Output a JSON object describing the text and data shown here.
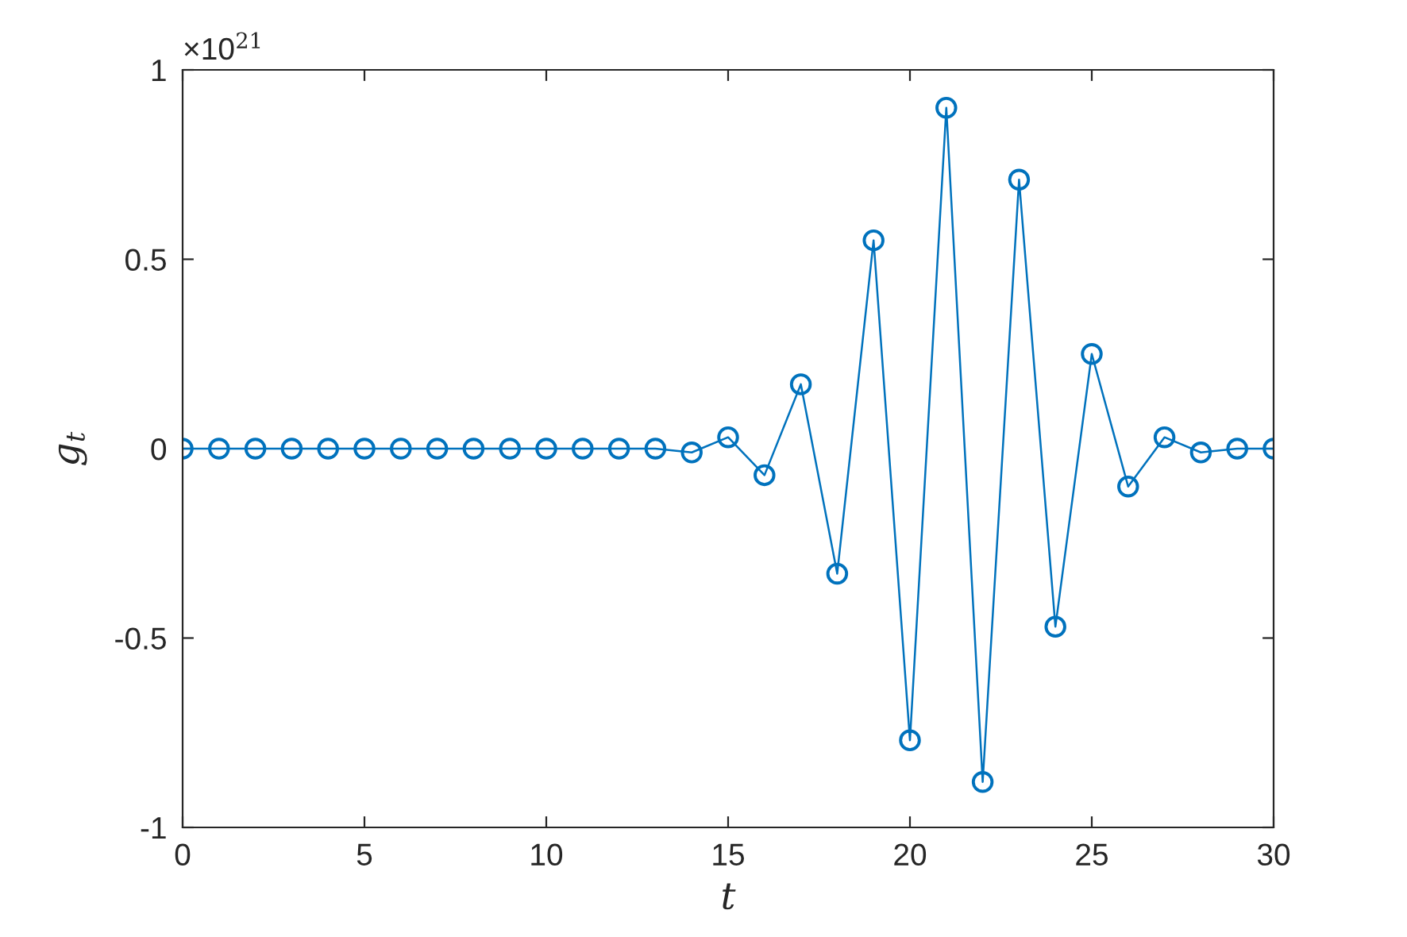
{
  "chart_data": {
    "type": "line",
    "xlabel": "t",
    "ylabel": "g$_{t}$",
    "annotations": [
      "×10$^{21}$"
    ],
    "x": [
      0,
      1,
      2,
      3,
      4,
      5,
      6,
      7,
      8,
      9,
      10,
      11,
      12,
      13,
      14,
      15,
      16,
      17,
      18,
      19,
      20,
      21,
      22,
      23,
      24,
      25,
      26,
      27,
      28,
      29,
      30
    ],
    "series": [
      {
        "color": "#0072bd",
        "values": [
          0,
          0,
          0,
          0,
          0,
          0,
          0,
          0,
          0,
          0,
          0,
          0,
          0,
          0,
          -0.01,
          0.03,
          -0.07,
          0.17,
          -0.33,
          0.55,
          -0.77,
          0.9,
          -0.88,
          0.71,
          -0.47,
          0.25,
          -0.1,
          0.03,
          -0.01,
          0,
          0
        ]
      }
    ],
    "xlim": [
      0,
      30
    ],
    "xticks": [
      0,
      5,
      10,
      15,
      20,
      25,
      30
    ],
    "ylim": [
      -1,
      1
    ],
    "yticks": [
      -1,
      -0.5,
      0,
      0.5,
      1
    ],
    "grid": false,
    "marker": "circle",
    "line_style": "solid"
  }
}
